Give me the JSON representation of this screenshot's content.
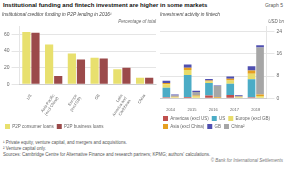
{
  "title": "Institutional funding and fintech investment are higher in some markets",
  "annotations": [
    "Graph 5",
    "¹ Private equity, venture capital, and mergers and acquisitions.",
    "² Venture capital only.",
    "Sources: Cambridge Centre for Alternative Finance and research partners; KPMG; authors' calculations.",
    "© Bank for International Settlements"
  ],
  "chart_data": [
    {
      "type": "bar",
      "title": "Institutional creditor funding in P2P lending in 2016¹",
      "subtitle": "Percentage of total",
      "categories": [
        "US",
        "Asia-Pacific\n(excl China)",
        "Europe\n(excl GB)",
        "GB",
        "Latin\nAmerica and\nCaribbean",
        "China"
      ],
      "series": [
        {
          "name": "P2P consumer loans",
          "color": "#e8e06e",
          "values": [
            63,
            48,
            37,
            32,
            18,
            8
          ]
        },
        {
          "name": "P2P business loans",
          "color": "#9b4a4a",
          "values": [
            62,
            10,
            30,
            31,
            20,
            8
          ]
        }
      ],
      "ylim": [
        0,
        70
      ],
      "yticks": [
        0,
        20,
        40,
        60
      ],
      "grid": true,
      "legend": "bottom"
    },
    {
      "type": "bar",
      "title": "Investment activity in fintech",
      "subtitle": "USD bn",
      "categories": [
        "2014",
        "2015",
        "2016",
        "2017",
        "2018"
      ],
      "stacked": true,
      "series": [
        [
          {
            "name": "Americas (excl US)",
            "color": "#c0504d",
            "values": [
              0.3,
              0.4,
              1.0,
              1.2,
              0.3
            ]
          },
          {
            "name": "US",
            "color": "#4bacc6",
            "values": [
              3.5,
              8.0,
              4.5,
              4.0,
              6.5
            ]
          },
          {
            "name": "Europe (excl GB)",
            "color": "#e8dc6a",
            "values": [
              1.2,
              1.8,
              0.5,
              1.2,
              2.0
            ]
          },
          {
            "name": "Asia (excl China)",
            "color": "#e6a020",
            "values": [
              0.5,
              0.8,
              0.4,
              0.6,
              1.2
            ]
          },
          {
            "name": "GB",
            "color": "#4f4fb0",
            "values": [
              0.8,
              1.2,
              0.5,
              0.8,
              1.5
            ]
          }
        ],
        [
          {
            "name": "Europe (excl GB)",
            "color": "#e8dc6a",
            "values": [
              0.3,
              0.6,
              0.2,
              0.3,
              0.8
            ]
          },
          {
            "name": "Asia (excl China)",
            "color": "#e6a020",
            "values": [
              0.2,
              0.4,
              0.2,
              0.2,
              0.5
            ]
          },
          {
            "name": "China²",
            "color": "#a6a6a6",
            "values": [
              0.5,
              1.2,
              4.0,
              0.3,
              17.0
            ]
          },
          {
            "name": "GB",
            "color": "#4f4fb0",
            "values": [
              0.3,
              0.5,
              0.2,
              0.3,
              0.8
            ]
          }
        ]
      ],
      "ylim": [
        0,
        26
      ],
      "yticks": [
        0,
        8,
        16,
        24
      ],
      "grid": true,
      "legend": "bottom"
    }
  ]
}
